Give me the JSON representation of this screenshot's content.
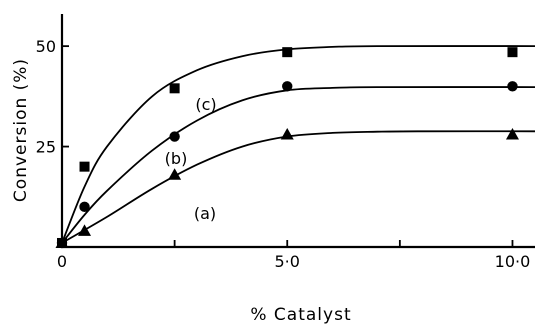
{
  "chart_data": {
    "type": "scatter",
    "xlabel": "% Catalyst",
    "ylabel": "Conversion (%)",
    "xlim": [
      0,
      10.5
    ],
    "ylim": [
      0,
      58
    ],
    "x_ticks": [
      {
        "value": 0,
        "label": "0"
      },
      {
        "value": 5,
        "label": "5·0"
      },
      {
        "value": 10,
        "label": "10·0"
      }
    ],
    "x_minor_ticks": [
      2.5,
      7.5
    ],
    "y_ticks": [
      {
        "value": 25,
        "label": "25"
      },
      {
        "value": 50,
        "label": "50"
      }
    ],
    "series": [
      {
        "name": "(a)",
        "marker": "triangle",
        "points": [
          [
            0,
            1
          ],
          [
            0.5,
            4
          ],
          [
            2.5,
            18
          ],
          [
            5,
            28
          ],
          [
            10,
            28
          ]
        ],
        "curve": [
          [
            0,
            1
          ],
          [
            1,
            7.5
          ],
          [
            2,
            14.5
          ],
          [
            3,
            20.5
          ],
          [
            4,
            25
          ],
          [
            5,
            27.5
          ],
          [
            6,
            28.4
          ],
          [
            7,
            28.7
          ],
          [
            8,
            28.8
          ],
          [
            10.5,
            28.8
          ]
        ]
      },
      {
        "name": "(b)",
        "marker": "circle",
        "points": [
          [
            0,
            1
          ],
          [
            0.5,
            10
          ],
          [
            2.5,
            27.5
          ],
          [
            5,
            40
          ],
          [
            10,
            40
          ]
        ],
        "curve": [
          [
            0,
            1
          ],
          [
            0.5,
            8
          ],
          [
            1,
            14
          ],
          [
            2,
            24
          ],
          [
            3,
            31.5
          ],
          [
            4,
            36.5
          ],
          [
            5,
            39
          ],
          [
            6,
            39.6
          ],
          [
            7,
            39.8
          ],
          [
            10.5,
            39.8
          ]
        ]
      },
      {
        "name": "(c)",
        "marker": "square",
        "points": [
          [
            0,
            1
          ],
          [
            0.5,
            20
          ],
          [
            2.5,
            39.5
          ],
          [
            5,
            48.5
          ],
          [
            10,
            48.5
          ]
        ],
        "curve": [
          [
            0,
            1
          ],
          [
            0.5,
            15
          ],
          [
            1,
            25
          ],
          [
            2,
            37.5
          ],
          [
            3,
            44
          ],
          [
            4,
            47.5
          ],
          [
            5,
            49.2
          ],
          [
            6,
            49.8
          ],
          [
            7,
            50
          ],
          [
            10.5,
            50
          ]
        ]
      }
    ]
  }
}
